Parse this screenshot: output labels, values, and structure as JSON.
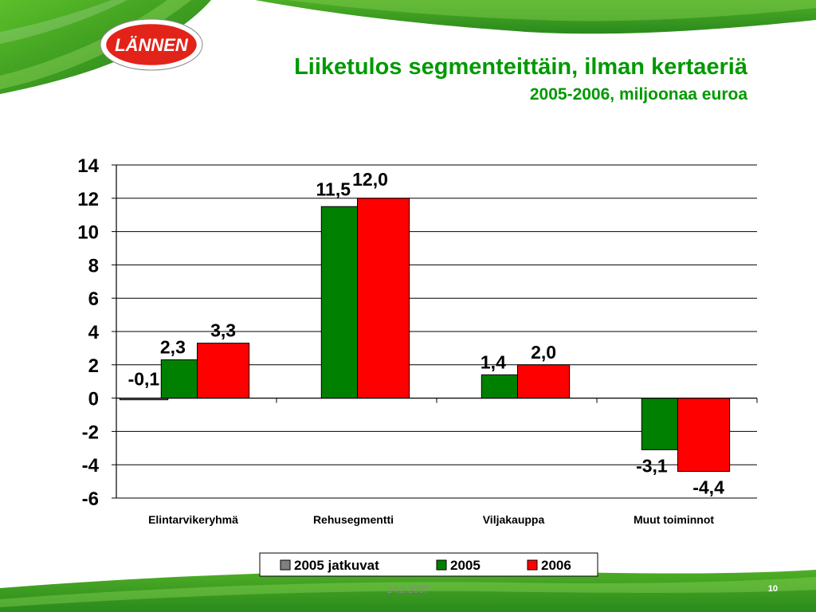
{
  "slide": {
    "title": "Liiketulos segmenteittäin, ilman kertaeriä",
    "subtitle": "2005-2006, miljoonaa euroa",
    "logo_text": "LÄNNEN",
    "date": "14.2.2007",
    "page_number": "10"
  },
  "colors": {
    "accent": "#009900",
    "bar_2005_jatkuvat": "#808080",
    "bar_2005": "#008000",
    "bar_2006": "#ff0000",
    "logo_red": "#e2231a",
    "leaf_green": "#2e8b1e"
  },
  "chart_data": {
    "type": "bar",
    "categories": [
      "Elintarvikeryhmä",
      "Rehusegmentti",
      "Viljakauppa",
      "Muut toiminnot"
    ],
    "series": [
      {
        "name": "2005 jatkuvat",
        "values": [
          -0.1,
          null,
          null,
          null
        ],
        "labels": [
          "-0,1",
          "",
          "",
          ""
        ]
      },
      {
        "name": "2005",
        "values": [
          2.3,
          11.5,
          1.4,
          -3.1
        ],
        "labels": [
          "2,3",
          "11,5",
          "1,4",
          "-3,1"
        ]
      },
      {
        "name": "2006",
        "values": [
          3.3,
          12.0,
          2.0,
          -4.4
        ],
        "labels": [
          "3,3",
          "12,0",
          "2,0",
          "-4,4"
        ]
      }
    ],
    "yticks": [
      "14",
      "12",
      "10",
      "8",
      "6",
      "4",
      "2",
      "0",
      "-2",
      "-4",
      "-6"
    ],
    "ylim": [
      -6,
      14
    ],
    "ystep": 2,
    "grid": true,
    "legend_position": "bottom"
  }
}
